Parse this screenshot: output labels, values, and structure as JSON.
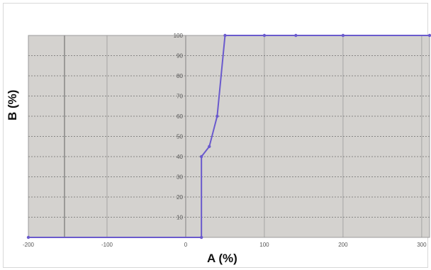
{
  "chart_data": {
    "type": "line",
    "title": "",
    "xlabel": "A (%)",
    "ylabel": "B (%)",
    "xlim": [
      -200,
      310
    ],
    "ylim": [
      0,
      100
    ],
    "x_ticks": [
      -200,
      -100,
      0,
      100,
      200,
      300
    ],
    "x_tick_labels": [
      "-200",
      "-100",
      "0",
      "100",
      "200",
      "300"
    ],
    "y_ticks": [
      0,
      10,
      20,
      30,
      40,
      50,
      60,
      70,
      80,
      90,
      100
    ],
    "y_tick_labels": [
      "0",
      "10",
      "20",
      "30",
      "40",
      "50",
      "60",
      "70",
      "80",
      "90",
      "100"
    ],
    "grid": true,
    "colors": {
      "line": "#6a5acd",
      "plot_background": "#d4d2cf",
      "grid": "#7f7f7f"
    },
    "series": [
      {
        "x": [
          -200,
          20,
          20,
          30,
          40,
          50,
          100,
          140,
          200,
          310
        ],
        "y": [
          0,
          0,
          40,
          45,
          60,
          100,
          100,
          100,
          100,
          100
        ]
      }
    ]
  }
}
